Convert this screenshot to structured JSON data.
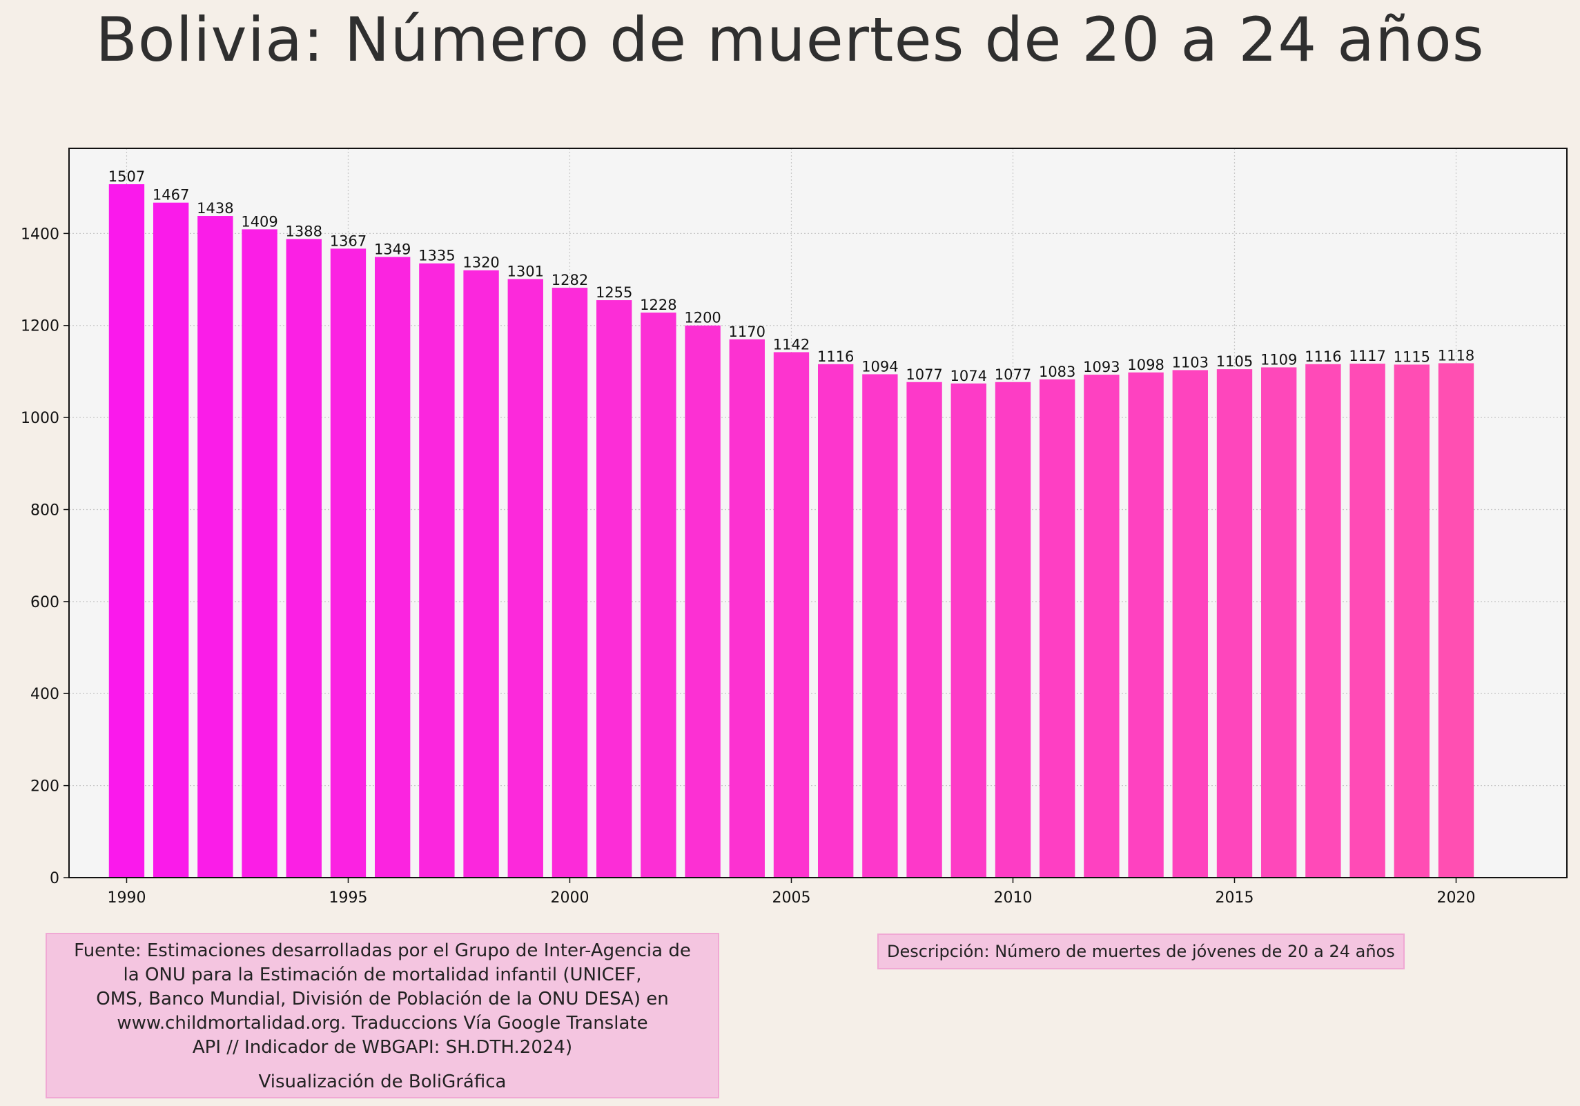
{
  "title": "Bolivia:  Número de muertes de 20 a 24 años",
  "source_text": "Fuente: Estimaciones desarrolladas por el Grupo de Inter-Agencia de\nla ONU para la Estimación de mortalidad infantil (UNICEF,\nOMS, Banco Mundial, División de Población de la ONU DESA) en\nwww.childmortalidad.org. Traduccions Vía Google Translate\nAPI // Indicador de WBGAPI: SH.DTH.2024)",
  "credit_text": "Visualización de BoliGráfica",
  "description_text": "Descripción: Número de muertes de jóvenes de 20 a 24 años",
  "colors": {
    "background": "#f5efe8",
    "plot_background": "#f5f5f5",
    "bar_start": "#fa19ec",
    "bar_end": "#ff4fb2",
    "box_fill": "#f4c5e0",
    "box_border": "#f0a8d4"
  },
  "chart_data": {
    "type": "bar",
    "title": "Bolivia:  Número de muertes de 20 a 24 años",
    "xlabel": "",
    "ylabel": "",
    "x": [
      1990,
      1991,
      1992,
      1993,
      1994,
      1995,
      1996,
      1997,
      1998,
      1999,
      2000,
      2001,
      2002,
      2003,
      2004,
      2005,
      2006,
      2007,
      2008,
      2009,
      2010,
      2011,
      2012,
      2013,
      2014,
      2015,
      2016,
      2017,
      2018,
      2019,
      2020
    ],
    "values": [
      1507,
      1467,
      1438,
      1409,
      1388,
      1367,
      1349,
      1335,
      1320,
      1301,
      1282,
      1255,
      1228,
      1200,
      1170,
      1142,
      1116,
      1094,
      1077,
      1074,
      1077,
      1083,
      1093,
      1098,
      1103,
      1105,
      1109,
      1116,
      1117,
      1115,
      1118
    ],
    "xlim": [
      1988.7,
      2022.5
    ],
    "ylim": [
      0,
      1585
    ],
    "xticks": [
      1990,
      1995,
      2000,
      2005,
      2010,
      2015,
      2020
    ],
    "yticks": [
      0,
      200,
      400,
      600,
      800,
      1000,
      1200,
      1400
    ],
    "grid": true,
    "data_labels": true,
    "legend": "none"
  }
}
